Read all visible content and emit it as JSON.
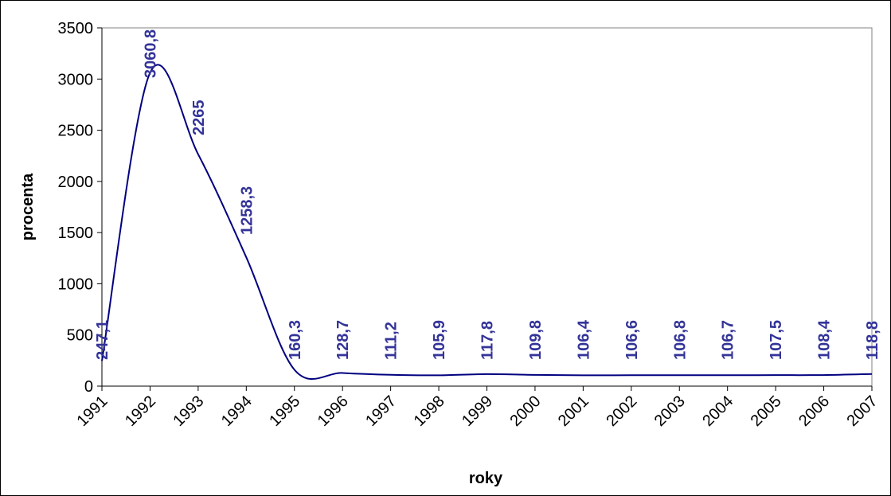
{
  "chart_data": {
    "type": "line",
    "title": "",
    "xlabel": "roky",
    "ylabel": "procenta",
    "x": [
      "1991",
      "1992",
      "1993",
      "1994",
      "1995",
      "1996",
      "1997",
      "1998",
      "1999",
      "2000",
      "2001",
      "2002",
      "2003",
      "2004",
      "2005",
      "2006",
      "2007"
    ],
    "series": [
      {
        "values": [
          247.1,
          3060.8,
          2265,
          1258.3,
          160.3,
          128.7,
          111.2,
          105.9,
          117.8,
          109.8,
          106.4,
          106.6,
          106.8,
          106.7,
          107.5,
          108.4,
          118.8
        ],
        "data_labels": [
          "247,1",
          "3060,8",
          "2265",
          "1258,3",
          "160,3",
          "128,7",
          "111,2",
          "105,9",
          "117,8",
          "109,8",
          "106,4",
          "106,6",
          "106,8",
          "106,7",
          "107,5",
          "108,4",
          "118,8"
        ],
        "color": "#000080",
        "label_color": "#333399"
      }
    ],
    "ylim": [
      0,
      3500
    ],
    "yticks": [
      "0",
      "500",
      "1000",
      "1500",
      "2000",
      "2500",
      "3000",
      "3500"
    ],
    "smooth": true,
    "grid": false,
    "legend": "none"
  }
}
